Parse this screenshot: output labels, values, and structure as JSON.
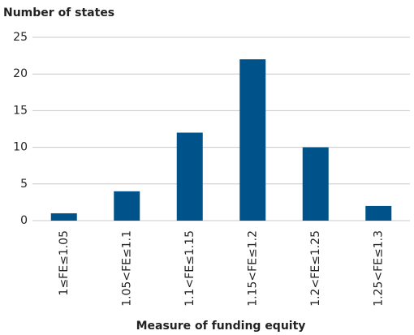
{
  "chart_data": {
    "type": "bar",
    "y_axis_label": "Number of states",
    "x_axis_label": "Measure of funding equity",
    "categories": [
      "1≤FE≤1.05",
      "1.05<FE≤1.1",
      "1.1<FE≤1.15",
      "1.15<FE≤1.2",
      "1.2<FE≤1.25",
      "1.25<FE≤1.3"
    ],
    "values": [
      1,
      4,
      12,
      22,
      10,
      2
    ],
    "color": "#00538a",
    "ylim": [
      0,
      25
    ],
    "yticks": [
      0,
      5,
      10,
      15,
      20,
      25
    ],
    "grid": true
  }
}
